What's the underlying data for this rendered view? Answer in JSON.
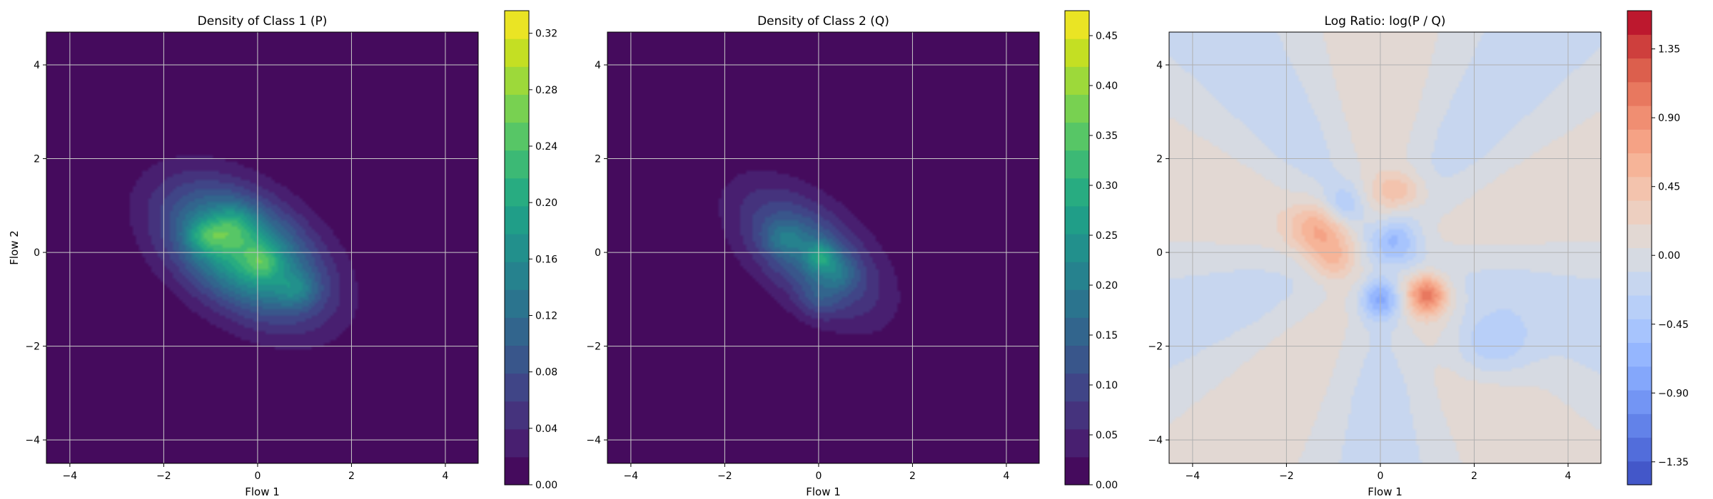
{
  "chart_data": [
    {
      "type": "heatmap",
      "title": "Density of Class 1 (P)",
      "xlabel": "Flow 1",
      "ylabel": "Flow 2",
      "xlim": [
        -4.5,
        4.7
      ],
      "ylim": [
        -4.5,
        4.7
      ],
      "x_ticks": [
        -4,
        -2,
        0,
        2,
        4
      ],
      "y_ticks": [
        -4,
        -2,
        0,
        2,
        4
      ],
      "grid": true,
      "colormap": "viridis",
      "colorbar": {
        "min": 0.0,
        "max": 0.336,
        "ticks": [
          0.0,
          0.04,
          0.08,
          0.12,
          0.16,
          0.2,
          0.24,
          0.28,
          0.32
        ],
        "tick_labels": [
          "0.00",
          "0.04",
          "0.08",
          "0.12",
          "0.16",
          "0.20",
          "0.24",
          "0.28",
          "0.32"
        ]
      },
      "blobs": [
        {
          "x": -0.3,
          "y": 0.0,
          "sx": 1.25,
          "sy": 0.75,
          "rot": -35,
          "peak": 0.22
        },
        {
          "x": -1.1,
          "y": 0.35,
          "sx": 0.3,
          "sy": 0.25,
          "rot": 0,
          "peak": 0.07
        },
        {
          "x": -0.5,
          "y": 0.6,
          "sx": 0.3,
          "sy": 0.3,
          "rot": 0,
          "peak": 0.05
        },
        {
          "x": 0.1,
          "y": -0.2,
          "sx": 0.25,
          "sy": 0.25,
          "rot": 0,
          "peak": 0.05
        },
        {
          "x": 0.85,
          "y": -0.8,
          "sx": 0.3,
          "sy": 0.25,
          "rot": 0,
          "peak": 0.05
        }
      ]
    },
    {
      "type": "heatmap",
      "title": "Density of Class 2 (Q)",
      "xlabel": "Flow 1",
      "ylabel": "",
      "xlim": [
        -4.5,
        4.7
      ],
      "ylim": [
        -4.5,
        4.7
      ],
      "x_ticks": [
        -4,
        -2,
        0,
        2,
        4
      ],
      "y_ticks": [
        -4,
        -2,
        0,
        2,
        4
      ],
      "grid": true,
      "colormap": "viridis",
      "colorbar": {
        "min": 0.0,
        "max": 0.475,
        "ticks": [
          0.0,
          0.05,
          0.1,
          0.15,
          0.2,
          0.25,
          0.3,
          0.35,
          0.4,
          0.45
        ],
        "tick_labels": [
          "0.00",
          "0.05",
          "0.10",
          "0.15",
          "0.20",
          "0.25",
          "0.30",
          "0.35",
          "0.40",
          "0.45"
        ]
      },
      "blobs": [
        {
          "x": -0.2,
          "y": 0.0,
          "sx": 1.2,
          "sy": 0.65,
          "rot": -40,
          "peak": 0.17
        },
        {
          "x": 0.05,
          "y": -0.1,
          "sx": 0.22,
          "sy": 0.22,
          "rot": 0,
          "peak": 0.12
        },
        {
          "x": -0.75,
          "y": 0.3,
          "sx": 0.3,
          "sy": 0.25,
          "rot": 0,
          "peak": 0.06
        },
        {
          "x": 0.45,
          "y": -0.45,
          "sx": 0.25,
          "sy": 0.25,
          "rot": 0,
          "peak": 0.06
        },
        {
          "x": 0.0,
          "y": -1.0,
          "sx": 0.3,
          "sy": 0.3,
          "rot": 0,
          "peak": 0.05
        }
      ]
    },
    {
      "type": "heatmap",
      "title": "Log Ratio: log(P / Q)",
      "xlabel": "Flow 1",
      "ylabel": "",
      "xlim": [
        -4.5,
        4.7
      ],
      "ylim": [
        -4.5,
        4.7
      ],
      "x_ticks": [
        -4,
        -2,
        0,
        2,
        4
      ],
      "y_ticks": [
        -4,
        -2,
        0,
        2,
        4
      ],
      "grid": true,
      "colormap": "coolwarm",
      "colorbar": {
        "min": -1.5,
        "max": 1.6,
        "ticks": [
          -1.35,
          -0.9,
          -0.45,
          0.0,
          0.45,
          0.9,
          1.35
        ],
        "tick_labels": [
          "−1.35",
          "−0.90",
          "−0.45",
          "0.00",
          "0.45",
          "0.90",
          "1.35"
        ]
      },
      "blobs": [
        {
          "x": -1.3,
          "y": 0.5,
          "sx": 0.45,
          "sy": 0.4,
          "rot": 0,
          "peak": 0.6
        },
        {
          "x": -1.0,
          "y": -0.2,
          "sx": 0.35,
          "sy": 0.3,
          "rot": 0,
          "peak": 0.5
        },
        {
          "x": 1.0,
          "y": -0.9,
          "sx": 0.3,
          "sy": 0.3,
          "rot": 0,
          "peak": 1.0
        },
        {
          "x": 0.4,
          "y": 1.3,
          "sx": 0.4,
          "sy": 0.3,
          "rot": 0,
          "peak": 0.45
        },
        {
          "x": 0.3,
          "y": 0.2,
          "sx": 0.4,
          "sy": 0.35,
          "rot": 0,
          "peak": -0.6
        },
        {
          "x": 0.0,
          "y": -1.0,
          "sx": 0.3,
          "sy": 0.3,
          "rot": 0,
          "peak": -0.7
        },
        {
          "x": 2.3,
          "y": -2.0,
          "sx": 0.6,
          "sy": 0.5,
          "rot": 0,
          "peak": -0.45
        },
        {
          "x": -0.8,
          "y": 1.0,
          "sx": 0.3,
          "sy": 0.3,
          "rot": 0,
          "peak": -0.4
        }
      ]
    }
  ]
}
